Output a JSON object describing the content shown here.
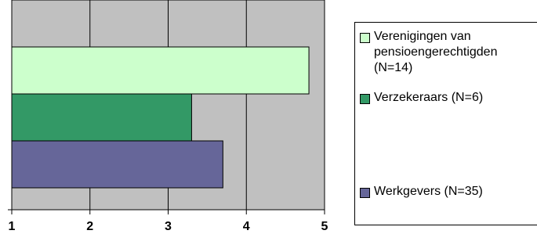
{
  "chart_data": {
    "type": "bar",
    "orientation": "horizontal",
    "title": "",
    "xlabel": "",
    "ylabel": "",
    "xlim": [
      1,
      5
    ],
    "x_ticks": [
      "1",
      "2",
      "3",
      "4",
      "5"
    ],
    "grid": true,
    "plot_background": "#C0C0C0",
    "legend_position": "right",
    "series": [
      {
        "name": "Verenigingen van pensioengerechtigden (N=14)",
        "value": 4.8,
        "color": "#CCFFCC"
      },
      {
        "name": "Verzekeraars (N=6)",
        "value": 3.3,
        "color": "#339966"
      },
      {
        "name": "Werkgevers (N=35)",
        "value": 3.7,
        "color": "#666699"
      }
    ]
  },
  "legend": {
    "items": [
      {
        "label": "Verenigingen van\npensioengerechtigden\n(N=14)",
        "color": "#CCFFCC"
      },
      {
        "label": "Verzekeraars (N=6)",
        "color": "#339966"
      },
      {
        "label": "Werkgevers (N=35)",
        "color": "#666699"
      }
    ]
  }
}
